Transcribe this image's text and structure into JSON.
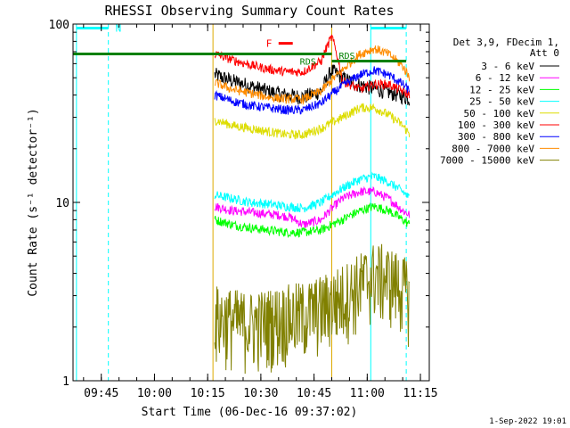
{
  "chart_data": {
    "type": "line",
    "title": "RHESSI Observing Summary Count Rates",
    "xlabel": "Start Time (06-Dec-16 09:37:02)",
    "ylabel": "Count Rate (s⁻¹ detector⁻¹)",
    "y_scale": "log",
    "ylim": [
      1,
      100
    ],
    "xlim": [
      "09:37:02",
      "11:17:30"
    ],
    "x_ticks": [
      "09:45",
      "10:00",
      "10:15",
      "10:30",
      "10:45",
      "11:00",
      "11:15"
    ],
    "y_ticks": [
      "1",
      "10",
      "100"
    ],
    "grid": false,
    "legend_position": "right",
    "legend_header": [
      "Det 3,9, FDecim 1,",
      "Att 0"
    ],
    "series": [
      {
        "name": "3 - 6 keV",
        "color": "#000000",
        "x": [
          "10:17",
          "10:22",
          "10:27",
          "10:32",
          "10:37",
          "10:42",
          "10:47",
          "10:50",
          "10:53",
          "10:57",
          "11:01",
          "11:05",
          "11:09",
          "11:12"
        ],
        "y": [
          52,
          48,
          45,
          42,
          40,
          39,
          42,
          55,
          50,
          46,
          44,
          42,
          40,
          38
        ]
      },
      {
        "name": "6 - 12 keV",
        "color": "#ff00ff",
        "x": [
          "10:17",
          "10:22",
          "10:27",
          "10:32",
          "10:35",
          "10:38",
          "10:42",
          "10:47",
          "10:53",
          "10:58",
          "11:02",
          "11:06",
          "11:10",
          "11:12"
        ],
        "y": [
          9.5,
          9.0,
          8.8,
          8.6,
          8.5,
          8.3,
          7.5,
          8.0,
          10.5,
          11.5,
          11.5,
          10.5,
          9.0,
          8.5
        ]
      },
      {
        "name": "12 - 25 keV",
        "color": "#00ff00",
        "x": [
          "10:17",
          "10:22",
          "10:27",
          "10:32",
          "10:37",
          "10:42",
          "10:47",
          "10:53",
          "10:58",
          "11:02",
          "11:06",
          "11:10",
          "11:12"
        ],
        "y": [
          8.0,
          7.5,
          7.2,
          7.0,
          6.8,
          6.8,
          7.0,
          8.0,
          9.0,
          9.5,
          9.0,
          8.0,
          7.5
        ]
      },
      {
        "name": "25 - 50 keV",
        "color": "#00ffff",
        "x": [
          "10:17",
          "10:22",
          "10:27",
          "10:32",
          "10:37",
          "10:42",
          "10:47",
          "10:53",
          "10:58",
          "11:02",
          "11:06",
          "11:10",
          "11:12"
        ],
        "y": [
          11.0,
          10.5,
          10.0,
          9.8,
          9.5,
          9.3,
          10.0,
          12.0,
          13.5,
          14.0,
          13.0,
          11.5,
          10.5
        ]
      },
      {
        "name": "50 - 100 keV",
        "color": "#dddd00",
        "x": [
          "10:17",
          "10:22",
          "10:27",
          "10:32",
          "10:37",
          "10:42",
          "10:47",
          "10:53",
          "10:58",
          "11:02",
          "11:06",
          "11:10",
          "11:12"
        ],
        "y": [
          29,
          27,
          26,
          25,
          24,
          24,
          26,
          30,
          34,
          34,
          31,
          27,
          24
        ]
      },
      {
        "name": "100 - 300 keV",
        "color": "#ff0000",
        "x": [
          "10:17",
          "10:22",
          "10:27",
          "10:32",
          "10:37",
          "10:42",
          "10:47",
          "10:50",
          "10:53",
          "10:58",
          "11:02",
          "11:06",
          "11:10",
          "11:12"
        ],
        "y": [
          68,
          63,
          59,
          56,
          54,
          54,
          62,
          85,
          48,
          43,
          46,
          46,
          42,
          40
        ]
      },
      {
        "name": "300 - 800 keV",
        "color": "#0000ff",
        "x": [
          "10:17",
          "10:22",
          "10:27",
          "10:32",
          "10:37",
          "10:42",
          "10:47",
          "10:53",
          "10:58",
          "11:02",
          "11:06",
          "11:10",
          "11:12"
        ],
        "y": [
          40,
          37,
          35,
          34,
          33,
          33,
          36,
          45,
          52,
          55,
          52,
          46,
          42
        ]
      },
      {
        "name": "800 - 7000 keV",
        "color": "#ff8c00",
        "x": [
          "10:17",
          "10:22",
          "10:27",
          "10:32",
          "10:37",
          "10:42",
          "10:47",
          "10:53",
          "10:58",
          "11:02",
          "11:06",
          "11:10",
          "11:12"
        ],
        "y": [
          47,
          43,
          41,
          39,
          38,
          38,
          42,
          55,
          68,
          73,
          68,
          58,
          50
        ]
      },
      {
        "name": "7000 - 15000 keV",
        "color": "#808000",
        "x": [
          "10:17",
          "10:22",
          "10:27",
          "10:32",
          "10:37",
          "10:42",
          "10:47",
          "10:53",
          "10:58",
          "11:02",
          "11:06",
          "11:10",
          "11:12"
        ],
        "y": [
          2.3,
          2.2,
          2.1,
          2.2,
          2.3,
          2.4,
          2.6,
          3.0,
          3.5,
          4.0,
          3.8,
          3.4,
          3.0
        ]
      }
    ],
    "flag_bars": [
      {
        "label": "N",
        "color": "#00ffff",
        "x_start": "09:38",
        "x_end": "09:47",
        "y": 95
      },
      {
        "label": "F",
        "color": "#ff0000",
        "x_start": "10:35",
        "x_end": "10:39",
        "y": 78
      },
      {
        "label": "",
        "color": "#008000",
        "x_start": "09:37:02",
        "x_end": "10:50",
        "y": 68
      },
      {
        "label": "",
        "color": "#008000",
        "x_start": "10:50",
        "x_end": "11:11",
        "y": 62
      },
      {
        "label": "",
        "color": "#00ffff",
        "x_start": "11:01",
        "x_end": "11:11",
        "y": 95
      }
    ],
    "annotations": [
      {
        "text": "RDS",
        "color": "#008000",
        "x": "10:41",
        "y": 62
      },
      {
        "text": "RDS",
        "color": "#008000",
        "x": "10:52",
        "y": 67
      }
    ],
    "vertical_lines": [
      {
        "x": "09:38",
        "color": "#00ffff",
        "style": "solid"
      },
      {
        "x": "09:47",
        "color": "#00ffff",
        "style": "dashed"
      },
      {
        "x": "10:16:30",
        "color": "#ddaa00",
        "style": "solid"
      },
      {
        "x": "10:50",
        "color": "#ddaa00",
        "style": "solid"
      },
      {
        "x": "11:01",
        "color": "#00ffff",
        "style": "solid"
      },
      {
        "x": "11:11",
        "color": "#00ffff",
        "style": "dashed"
      }
    ]
  },
  "footer": {
    "timestamp": "1-Sep-2022 19:01"
  }
}
